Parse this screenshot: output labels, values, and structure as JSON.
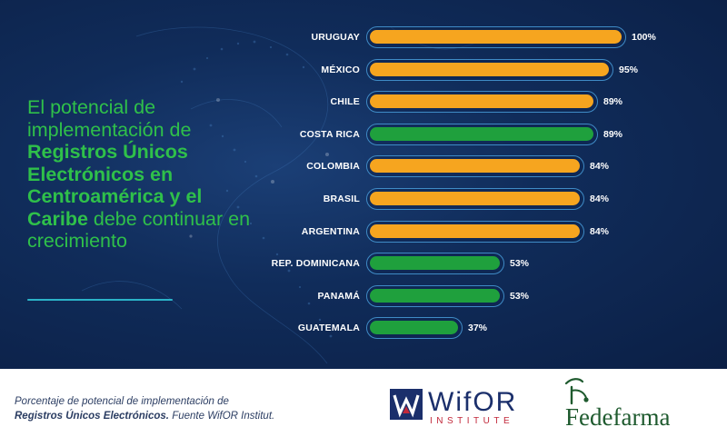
{
  "headline": {
    "part1": "El potencial de implementación de ",
    "bold": "Registros Únicos Electrónicos en Centroamérica y el Caribe",
    "part2": " debe continuar en crecimiento"
  },
  "chart_data": {
    "type": "bar",
    "orientation": "horizontal",
    "title": "",
    "xlabel": "",
    "ylabel": "",
    "xlim": [
      0,
      100
    ],
    "value_suffix": "%",
    "categories": [
      "URUGUAY",
      "MÉXICO",
      "CHILE",
      "COSTA RICA",
      "COLOMBIA",
      "BRASIL",
      "ARGENTINA",
      "REP. DOMINICANA",
      "PANAMÁ",
      "GUATEMALA"
    ],
    "values": [
      100,
      95,
      89,
      89,
      84,
      84,
      84,
      53,
      53,
      37
    ],
    "value_labels": [
      "100%",
      "95%",
      "89%",
      "89%",
      "84%",
      "84%",
      "84%",
      "53%",
      "53%",
      "37%"
    ],
    "bar_colors": [
      "#f6a51f",
      "#f6a51f",
      "#f6a51f",
      "#1fa03d",
      "#f6a51f",
      "#f6a51f",
      "#f6a51f",
      "#1fa03d",
      "#1fa03d",
      "#1fa03d"
    ]
  },
  "colors": {
    "orange": "#f6a51f",
    "green": "#1fa03d",
    "headline_green": "#2fc04a",
    "navy": "#102c5a"
  },
  "footer": {
    "caption_line1": "Porcentaje de potencial de implementación de",
    "caption_bold": "Registros Únicos Electrónicos.",
    "caption_rest": " Fuente WifOR Institut."
  },
  "logos": {
    "wifor_name": "WifOR",
    "wifor_sub": "INSTITUTE",
    "fedefarma_name": "Fedefarma"
  }
}
